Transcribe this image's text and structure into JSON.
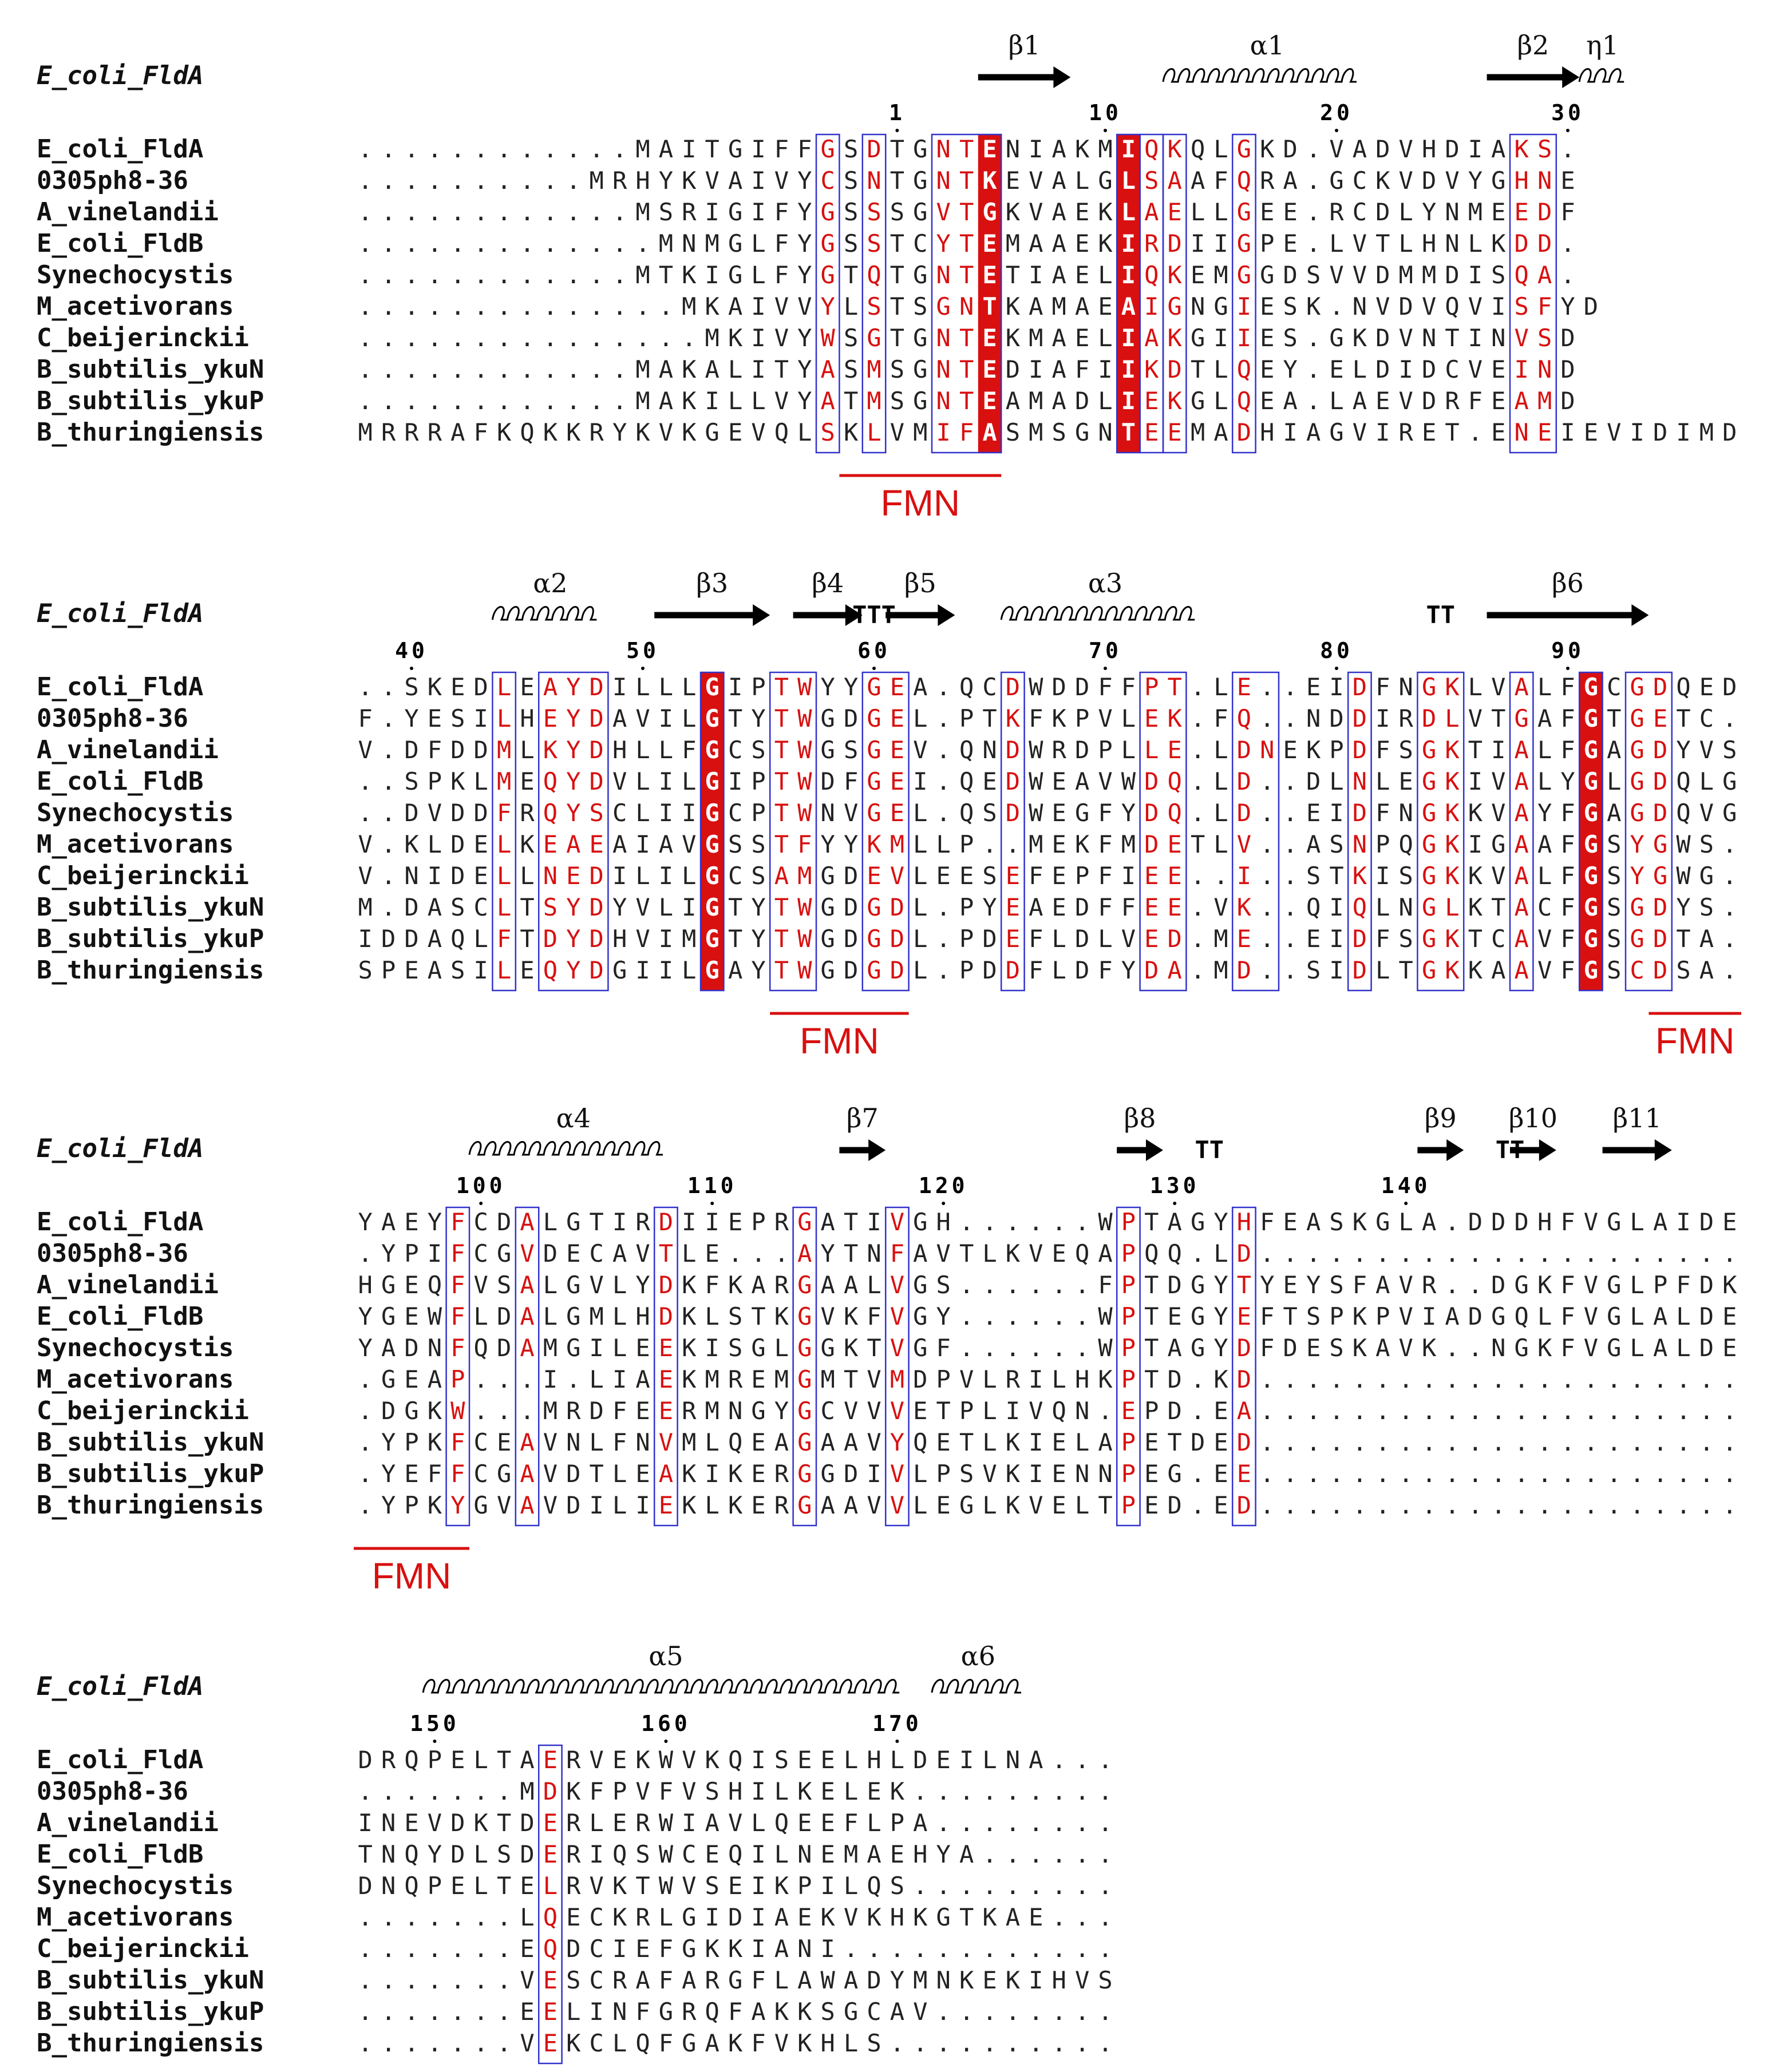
{
  "figure_title": "ESPript multiple sequence alignment of flavodoxins with secondary structure of E_coli_FldA",
  "colors": {
    "identical_bg": "#d81010",
    "similar_text": "#d81010",
    "box_border": "#3333cc",
    "fmn_label": "#d81010",
    "sequence_text": "#222222"
  },
  "legend": {
    "strictly_conserved": "white letter on red background",
    "similar": "red letter",
    "boxed": "similarity group box"
  },
  "blocks": [
    {
      "start_col": 0,
      "ss_header": "E_coli_FldA",
      "ss_elements": [
        {
          "type": "beta",
          "label": "β1",
          "start": 27,
          "end": 30
        },
        {
          "type": "alpha",
          "label": "α1",
          "start": 35,
          "end": 43
        },
        {
          "type": "beta",
          "label": "β2",
          "start": 49,
          "end": 52
        },
        {
          "type": "eta",
          "label": "η1",
          "start": 53,
          "end": 54
        }
      ],
      "ruler": [
        {
          "label": "1",
          "col": 23
        },
        {
          "label": "10",
          "col": 32
        },
        {
          "label": "20",
          "col": 42
        },
        {
          "label": "30",
          "col": 52
        }
      ],
      "sequences": [
        "............MAITGIFFGSDTGNTENIAKMIQKQLGKD.VADVHDIAKS.",
        "..........MRHYKVAIVYCSNTGNTKEVALGLSAAFQRA.GCKVDVYGHNE",
        "............MSRIGIFYGSSSGVTGKVAEKLAELLGEE.RCDLYNMEEDF",
        ".............MNMGLFYGSSTCYTEMAAEKIRDIIGPE.LVTLHNLKDD.",
        "............MTKIGLFYGTQTGNTETIAELIQKEMGGDSVVDMMDISQA.",
        "..............MKAIVVYLSTSGNTKAMAEAIGNGIESK.NVDVQVISFYD",
        "...............MKIVYWSGTGNTEKMAELIAKGIIES.GKDVNTINVSD",
        "............MAKALITYASMSGNTEDIAFIIKDTLQEY.ELDIDCVEIND",
        "............MAKILLVYATMSGNTEAMADLIEKGLQEA.LAEVDRFEAMD",
        "MRRRAFKQKKRYKVKGEVQLSKLVMIFASMSGNTEEMADHIAGVIRET.ENEIEVIDIMD"
      ],
      "boxes": [
        {
          "start": 20,
          "end": 20
        },
        {
          "start": 22,
          "end": 22
        },
        {
          "start": 25,
          "end": 27
        },
        {
          "start": 33,
          "end": 33
        },
        {
          "start": 34,
          "end": 34
        },
        {
          "start": 35,
          "end": 35
        },
        {
          "start": 38,
          "end": 38
        },
        {
          "start": 50,
          "end": 51
        }
      ],
      "identical": [
        {
          "start": 27,
          "end": 27
        },
        {
          "start": 33,
          "end": 33
        }
      ],
      "fmn": [
        {
          "start": 21,
          "end": 27,
          "label": "FMN"
        }
      ]
    },
    {
      "start_col": 0,
      "ss_header": "E_coli_FldA",
      "ss_elements": [
        {
          "type": "alpha",
          "label": "α2",
          "start": 6,
          "end": 10
        },
        {
          "type": "beta",
          "label": "β3",
          "start": 13,
          "end": 17
        },
        {
          "type": "beta",
          "label": "β4",
          "start": 19,
          "end": 21
        },
        {
          "type": "turn",
          "label": "TTT",
          "start": 21,
          "end": 23
        },
        {
          "type": "beta",
          "label": "β5",
          "start": 23,
          "end": 25
        },
        {
          "type": "alpha",
          "label": "α3",
          "start": 28,
          "end": 36
        },
        {
          "type": "turn",
          "label": "TT",
          "start": 46,
          "end": 47
        },
        {
          "type": "beta",
          "label": "β6",
          "start": 49,
          "end": 55
        }
      ],
      "ruler": [
        {
          "label": "40",
          "col": 2
        },
        {
          "label": "50",
          "col": 12
        },
        {
          "label": "60",
          "col": 22
        },
        {
          "label": "70",
          "col": 32
        },
        {
          "label": "80",
          "col": 42
        },
        {
          "label": "90",
          "col": 52
        }
      ],
      "sequences": [
        "..SKEDLEAYDILLLGIPTWYYGEA.QCDWDDFFPT.LE..EIDFNGKLVALFGCGDQED",
        "F.YESILHEYDAVILGTYTWGDGEL.PTKFKPVLEK.FQ..NDDIRDLVTGAFGTGETC.",
        "V.DFDDMLKYDHLLFGCSTWGSGEV.QNDWRDPLLE.LDNEKPDFSGKTIALFGAGDYVS",
        "..SPKLMEQYDVLILGIPTWDFGEI.QEDWEAVWDQ.LD..DLNLEGKIVALYGLGDQLG",
        "..DVDDFRQYSCLIIGCPTWNVGEL.QSDWEGFYDQ.LD..EIDFNGKKVAYFGAGDQVG",
        "V.KLDELKEAEAIAVGSSTFYYKMLLP..MEKFMDETLV..ASNPQGKIGAAFGSYGWS.",
        "V.NIDELLNEDILILGCSAMGDEVLEESEFEPFIEE..I..STKISGKKVALFGSYGWG.",
        "M.DASCLTSYDYVLIGTYTWGDGDL.PYEAEDFFEE.VK..QIQLNGLKTACFGSGDYS.",
        "IDDAQLFTDYDHVIMGTYTWGDGDL.PDEFLDLVED.ME..EIDFSGKTCAVFGSGDTA.",
        "SPEASILEQYDGIILGAYTWGDGDL.PDDFLDFYDA.MD..SIDLTGKKAAVFGSCDSA."
      ],
      "boxes": [
        {
          "start": 6,
          "end": 6
        },
        {
          "start": 8,
          "end": 10
        },
        {
          "start": 15,
          "end": 15
        },
        {
          "start": 18,
          "end": 19
        },
        {
          "start": 22,
          "end": 23
        },
        {
          "start": 28,
          "end": 28
        },
        {
          "start": 34,
          "end": 35
        },
        {
          "start": 38,
          "end": 39
        },
        {
          "start": 43,
          "end": 43
        },
        {
          "start": 46,
          "end": 47
        },
        {
          "start": 50,
          "end": 50
        },
        {
          "start": 53,
          "end": 53
        },
        {
          "start": 55,
          "end": 56
        }
      ],
      "identical": [
        {
          "start": 15,
          "end": 15
        },
        {
          "start": 53,
          "end": 53
        }
      ],
      "fmn": [
        {
          "start": 18,
          "end": 23,
          "label": "FMN"
        },
        {
          "start": 56,
          "end": 59,
          "label": "FMN"
        }
      ]
    },
    {
      "start_col": 0,
      "ss_header": "E_coli_FldA",
      "ss_elements": [
        {
          "type": "alpha",
          "label": "α4",
          "start": 5,
          "end": 13
        },
        {
          "type": "beta",
          "label": "β7",
          "start": 21,
          "end": 22
        },
        {
          "type": "beta",
          "label": "β8",
          "start": 33,
          "end": 34
        },
        {
          "type": "turn",
          "label": "TT",
          "start": 36,
          "end": 37
        },
        {
          "type": "beta",
          "label": "β9",
          "start": 46,
          "end": 47
        },
        {
          "type": "turn",
          "label": "TT",
          "start": 49,
          "end": 50
        },
        {
          "type": "beta",
          "label": "β10",
          "start": 50,
          "end": 51
        },
        {
          "type": "beta",
          "label": "β11",
          "start": 54,
          "end": 56
        }
      ],
      "ruler": [
        {
          "label": "100",
          "col": 5
        },
        {
          "label": "110",
          "col": 15
        },
        {
          "label": "120",
          "col": 25
        },
        {
          "label": "130",
          "col": 35
        },
        {
          "label": "140",
          "col": 45
        }
      ],
      "sequences": [
        "YAEYFCDALGTIRDIIEPRGATIVGH......WPTAGYHFEASKGLA.DDDHFVGLAIDE",
        ".YPIFCGVDECAVTLE...AYTNFAVTLKVEQAPQQ.LD.....................",
        "HGEQFVSALGVLYDKFKARGAALVGS......FPTDGYTYEYSFAVR..DGKFVGLPFDK",
        "YGEWFLDALGMLHDKLSTKGVKFVGY......WPTEGYEFTSPKPVIADGQLFVGLALDE",
        "YADNFQDAMGILEEKISGLGGKTVGF......WPTAGYDFDESKAVK..NGKFVGLALDE",
        ".GEAP...I.LIAEKMREMGMTVMDPVLRILHKPTD.KD.....................",
        ".DGKW...MRDFEERMNGYGCVVVETPLIVQN.EPD.EA.....................",
        ".YPKFCEAVNLFNVMLQEAGAAVYQETLKIELAPETDED.....................",
        ".YEFFCGAVDTLEAKIKERGGDIVLPSVKIENNPEG.EE.....................",
        ".YPKYGVAVDILIEKLKERGAAVVLEGLKVELTPED.ED....................."
      ],
      "boxes": [
        {
          "start": 4,
          "end": 4
        },
        {
          "start": 7,
          "end": 7
        },
        {
          "start": 13,
          "end": 13
        },
        {
          "start": 19,
          "end": 19
        },
        {
          "start": 23,
          "end": 23
        },
        {
          "start": 33,
          "end": 33
        },
        {
          "start": 38,
          "end": 38
        }
      ],
      "identical": [],
      "fmn": [
        {
          "start": 0,
          "end": 4,
          "label": "FMN"
        }
      ]
    },
    {
      "start_col": 0,
      "ss_header": "E_coli_FldA",
      "ss_elements": [
        {
          "type": "alpha",
          "label": "α5",
          "start": 3,
          "end": 23
        },
        {
          "type": "alpha",
          "label": "α6",
          "start": 25,
          "end": 28
        }
      ],
      "ruler": [
        {
          "label": "150",
          "col": 3
        },
        {
          "label": "160",
          "col": 13
        },
        {
          "label": "170",
          "col": 23
        }
      ],
      "sequences": [
        "DRQPELTAERVEKWVKQISEELHLDEILNA...",
        ".......MDKFPVFVSHILKELEK.........",
        "INEVDKTDERLERWIAVLQEEFLPA........",
        "TNQYDLSDERIQSWCEQILNEMAEHYA......",
        "DNQPELTELRVKTWVSEIKPILQS.........",
        ".......LQECKRLGIDIAEKVKHKGTKAE...",
        ".......EQDCIEFGKKIANI............",
        ".......VESCRAFARGFLAWADYMNKEKIHVS",
        ".......EELINFGRQFAKKSGCAV........",
        ".......VEKCLQFGAKFVKHLS.........."
      ],
      "boxes": [
        {
          "start": 8,
          "end": 8
        }
      ],
      "identical": [],
      "fmn": []
    }
  ],
  "sequence_names": [
    "E_coli_FldA",
    "0305ph8-36",
    "A_vinelandii",
    "E_coli_FldB",
    "Synechocystis",
    "M_acetivorans",
    "C_beijerinckii",
    "B_subtilis_ykuN",
    "B_subtilis_ykuP",
    "B_thuringiensis"
  ]
}
